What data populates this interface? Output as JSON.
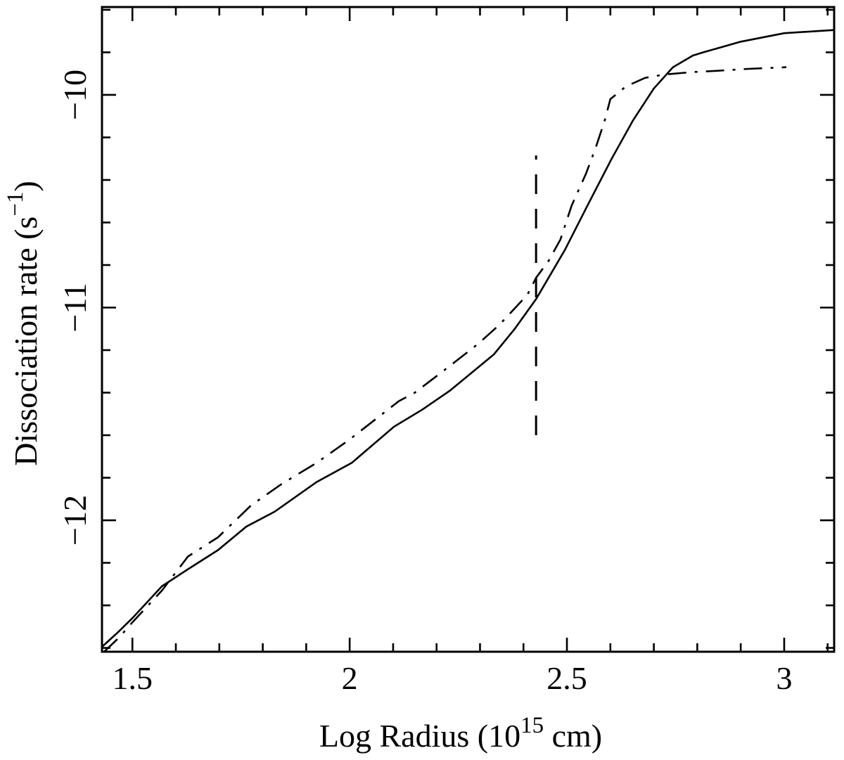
{
  "figure": {
    "background": "#ffffff",
    "line_color": "#000000"
  },
  "chart_data": {
    "type": "line",
    "title": "",
    "xlabel": "Log Radius (10^15 cm)",
    "xlabel_parts": {
      "pre": "Log Radius (10",
      "sup": "15",
      "post": " cm)"
    },
    "ylabel": "Dissociation rate (s^-1)",
    "ylabel_parts": {
      "pre": "Dissociation rate (s",
      "sup": "−1",
      "post": ")"
    },
    "xlim": [
      1.43,
      3.115
    ],
    "ylim": [
      -12.618,
      -9.587
    ],
    "grid": false,
    "legend": null,
    "x_major_ticks": [
      {
        "value": 1.5,
        "label": "1.5"
      },
      {
        "value": 2.0,
        "label": "2"
      },
      {
        "value": 2.5,
        "label": "2.5"
      },
      {
        "value": 3.0,
        "label": "3"
      }
    ],
    "x_minor_step": 0.1,
    "y_major_ticks": [
      {
        "value": -10,
        "label": "−10"
      },
      {
        "value": -11,
        "label": "−11"
      },
      {
        "value": -12,
        "label": "−12"
      }
    ],
    "y_minor_step": 0.2,
    "series": [
      {
        "key": "solid-curve",
        "name": "solid model curve",
        "style": "solid",
        "color": "#000000",
        "points": [
          [
            1.43,
            -12.595
          ],
          [
            1.465,
            -12.53
          ],
          [
            1.5,
            -12.46
          ],
          [
            1.568,
            -12.31
          ],
          [
            1.628,
            -12.23
          ],
          [
            1.697,
            -12.14
          ],
          [
            1.762,
            -12.03
          ],
          [
            1.827,
            -11.96
          ],
          [
            1.924,
            -11.82
          ],
          [
            2.005,
            -11.73
          ],
          [
            2.102,
            -11.56
          ],
          [
            2.167,
            -11.48
          ],
          [
            2.231,
            -11.39
          ],
          [
            2.332,
            -11.22
          ],
          [
            2.38,
            -11.1
          ],
          [
            2.429,
            -10.96
          ],
          [
            2.495,
            -10.73
          ],
          [
            2.55,
            -10.51
          ],
          [
            2.603,
            -10.3
          ],
          [
            2.652,
            -10.12
          ],
          [
            2.7,
            -9.97
          ],
          [
            2.744,
            -9.87
          ],
          [
            2.79,
            -9.815
          ],
          [
            2.814,
            -9.8
          ],
          [
            2.9,
            -9.75
          ],
          [
            3.0,
            -9.71
          ],
          [
            3.115,
            -9.695
          ]
        ]
      },
      {
        "key": "dashdot-curve",
        "name": "dash-dot model curve",
        "style": "dash-dot",
        "color": "#000000",
        "points": [
          [
            1.435,
            -12.618
          ],
          [
            1.47,
            -12.55
          ],
          [
            1.5,
            -12.48
          ],
          [
            1.568,
            -12.33
          ],
          [
            1.628,
            -12.17
          ],
          [
            1.697,
            -12.08
          ],
          [
            1.773,
            -11.93
          ],
          [
            1.843,
            -11.83
          ],
          [
            1.924,
            -11.73
          ],
          [
            2.0,
            -11.62
          ],
          [
            2.113,
            -11.44
          ],
          [
            2.15,
            -11.4
          ],
          [
            2.227,
            -11.28
          ],
          [
            2.296,
            -11.17
          ],
          [
            2.345,
            -11.08
          ],
          [
            2.409,
            -10.94
          ],
          [
            2.429,
            -10.86
          ],
          [
            2.458,
            -10.78
          ],
          [
            2.485,
            -10.68
          ],
          [
            2.511,
            -10.52
          ],
          [
            2.544,
            -10.37
          ],
          [
            2.566,
            -10.25
          ],
          [
            2.587,
            -10.12
          ],
          [
            2.6,
            -10.02
          ],
          [
            2.636,
            -9.96
          ],
          [
            2.68,
            -9.92
          ],
          [
            2.722,
            -9.905
          ],
          [
            2.786,
            -9.893
          ],
          [
            2.835,
            -9.888
          ],
          [
            2.916,
            -9.878
          ],
          [
            3.005,
            -9.87
          ]
        ]
      }
    ],
    "annotations": [
      {
        "key": "radius-marker-line",
        "name": "vertical dashed marker",
        "type": "vline",
        "style": "long-dash",
        "color": "#000000",
        "x": 2.429,
        "y_from": -11.6,
        "y_to": -10.285
      }
    ]
  }
}
